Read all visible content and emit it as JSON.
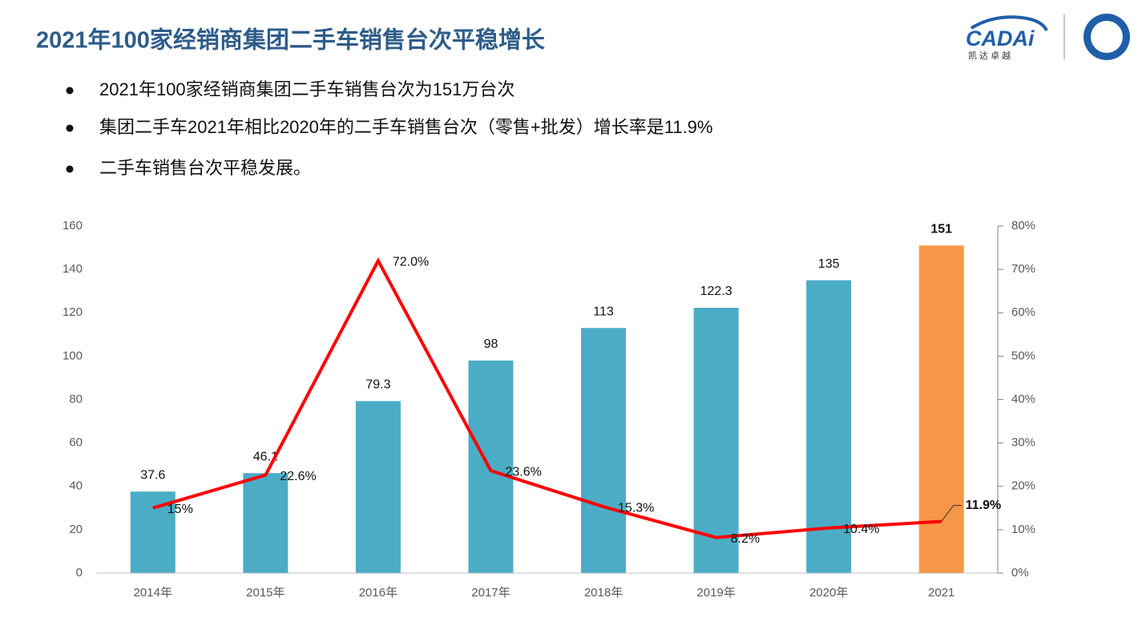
{
  "header": {
    "title": "2021年100家经销商集团二手车销售台次平稳增长",
    "logo": {
      "name": "CADAi",
      "tagline": "凯 达 卓 越"
    }
  },
  "bullets": [
    "2021年100家经销商集团二手车销售台次为151万台次",
    "集团二手车2021年相比2020年的二手车销售台次（零售+批发）增长率是11.9%",
    "二手车销售台次平稳发展。"
  ],
  "chart_data": {
    "type": "bar_line",
    "categories": [
      "2014年",
      "2015年",
      "2016年",
      "2017年",
      "2018年",
      "2019年",
      "2020年",
      "2021"
    ],
    "series": [
      {
        "type": "bar",
        "colors": [
          "#4bacc6",
          "#4bacc6",
          "#4bacc6",
          "#4bacc6",
          "#4bacc6",
          "#4bacc6",
          "#4bacc6",
          "#f79646"
        ],
        "values": [
          37.6,
          46.1,
          79.3,
          98,
          113,
          122.3,
          135,
          151
        ]
      },
      {
        "type": "line",
        "color": "#ff0000",
        "axis": "y2",
        "values": [
          15,
          22.6,
          72.0,
          23.6,
          15.3,
          8.2,
          10.4,
          11.9
        ],
        "value_labels": [
          "15%",
          "22.6%",
          "72.0%",
          "23.6%",
          "15.3%",
          "8.2%",
          "10.4%",
          "11.9%"
        ]
      }
    ],
    "ylim": [
      0,
      160
    ],
    "yticks": [
      0,
      20,
      40,
      60,
      80,
      100,
      120,
      140,
      160
    ],
    "y2lim": [
      0,
      80
    ],
    "y2ticks": [
      {
        "value": 0,
        "label": "0%"
      },
      {
        "value": 10,
        "label": "10%"
      },
      {
        "value": 20,
        "label": "20%"
      },
      {
        "value": 30,
        "label": "30%"
      },
      {
        "value": 40,
        "label": "40%"
      },
      {
        "value": 50,
        "label": "50%"
      },
      {
        "value": 60,
        "label": "60%"
      },
      {
        "value": 70,
        "label": "70%"
      },
      {
        "value": 80,
        "label": "80%"
      }
    ]
  }
}
